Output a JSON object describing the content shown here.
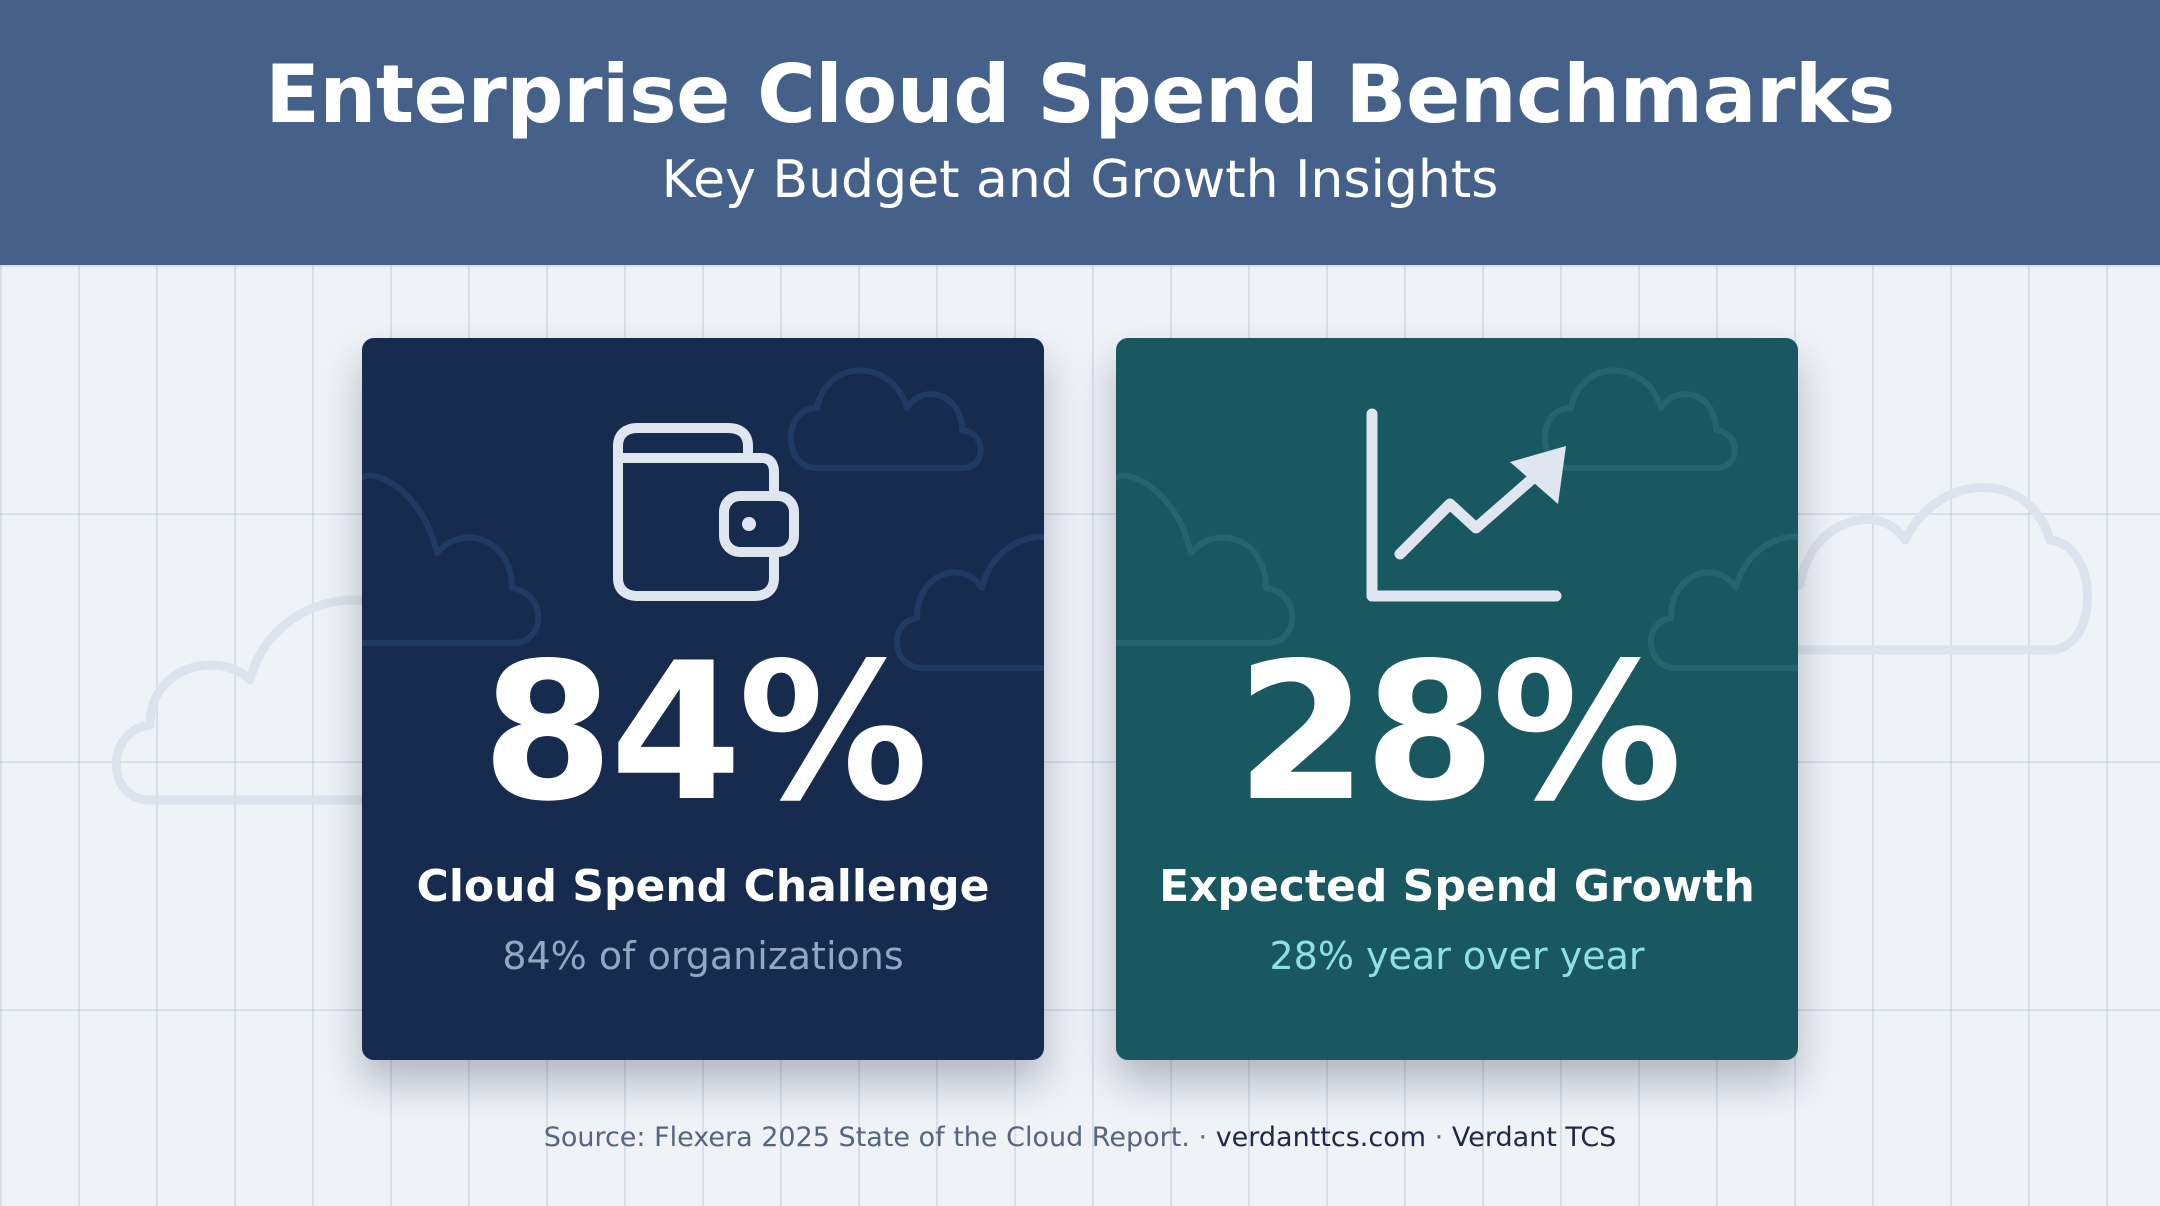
{
  "header": {
    "title": "Enterprise Cloud Spend Benchmarks",
    "subtitle": "Key Budget and Growth Insights"
  },
  "cards": [
    {
      "icon": "wallet-icon",
      "value": "84%",
      "label": "Cloud Spend Challenge",
      "sub": "84% of organizations",
      "background": "#172b4f",
      "sub_color": "#93a6c2"
    },
    {
      "icon": "growth-chart-icon",
      "value": "28%",
      "label": "Expected Spend Growth",
      "sub": "28% year over year",
      "background": "#195861",
      "sub_color": "#8fe0e6"
    }
  ],
  "footer": {
    "source": "Source: Flexera 2025 State of the Cloud Report.",
    "separator": "·",
    "site": "verdanttcs.com",
    "brand": "Verdant TCS"
  },
  "colors": {
    "header_bg": "#456189",
    "page_bg": "#eff2f7"
  }
}
